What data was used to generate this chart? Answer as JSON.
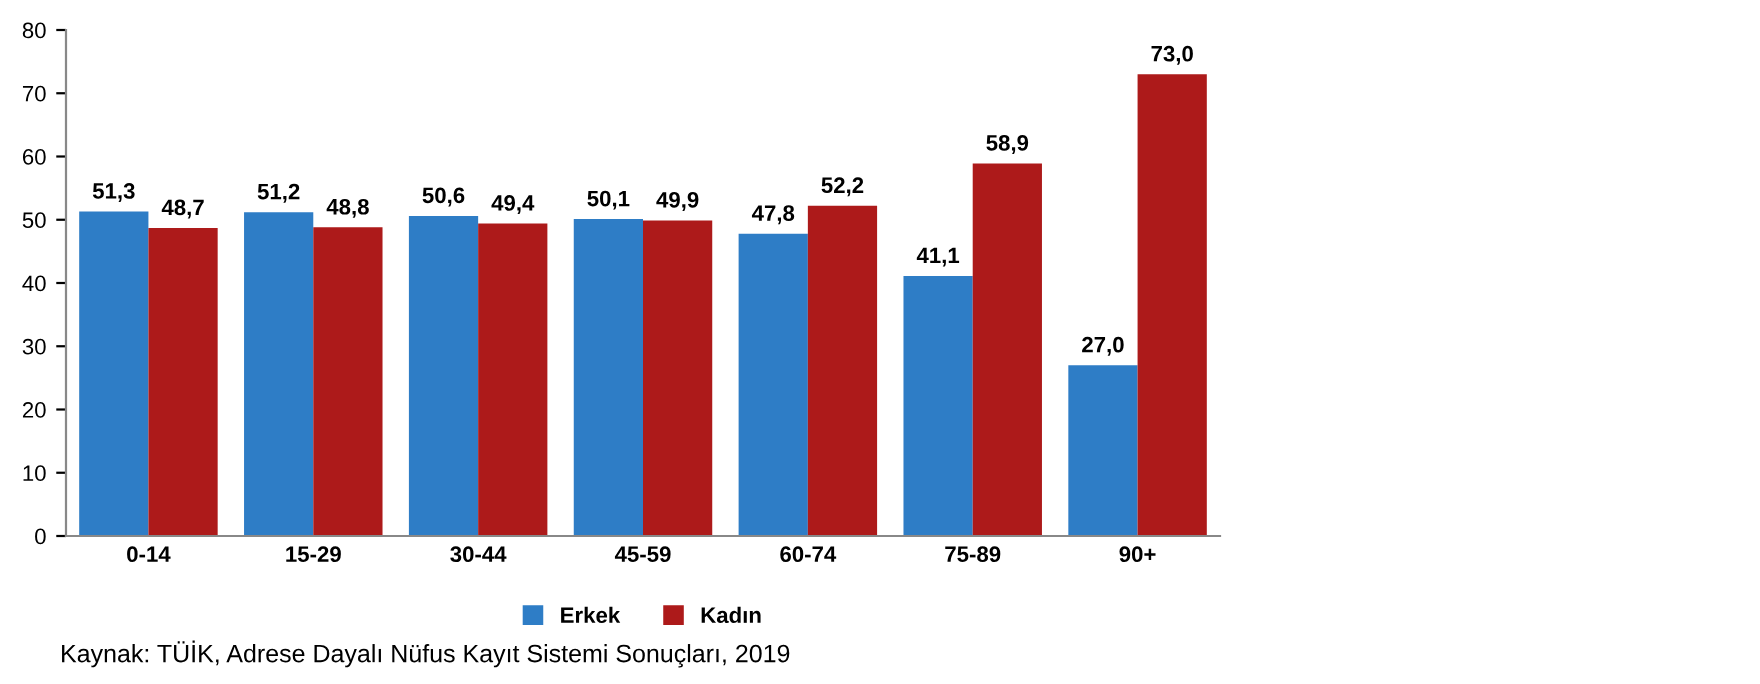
{
  "chart_data": {
    "type": "bar",
    "categories": [
      "0-14",
      "15-29",
      "30-44",
      "45-59",
      "60-74",
      "75-89",
      "90+"
    ],
    "series": [
      {
        "name": "Erkek",
        "color": "#2e7dc6",
        "values": [
          51.3,
          51.2,
          50.6,
          50.1,
          47.8,
          41.1,
          27.0
        ],
        "value_labels": [
          "51,3",
          "51,2",
          "50,6",
          "50,1",
          "47,8",
          "41,1",
          "27,0"
        ]
      },
      {
        "name": "Kadın",
        "color": "#ad1a1a",
        "values": [
          48.7,
          48.8,
          49.4,
          49.9,
          52.2,
          58.9,
          73.0
        ],
        "value_labels": [
          "48,7",
          "48,8",
          "49,4",
          "49,9",
          "52,2",
          "58,9",
          "73,0"
        ]
      }
    ],
    "ylim": [
      0,
      80
    ],
    "yticks": [
      0,
      10,
      20,
      30,
      40,
      50,
      60,
      70,
      80
    ],
    "grid": false,
    "legend": "bottom",
    "annotations": [
      "Kaynak: TÜİK, Adrese Dayalı Nüfus Kayıt Sistemi Sonuçları, 2019"
    ]
  }
}
